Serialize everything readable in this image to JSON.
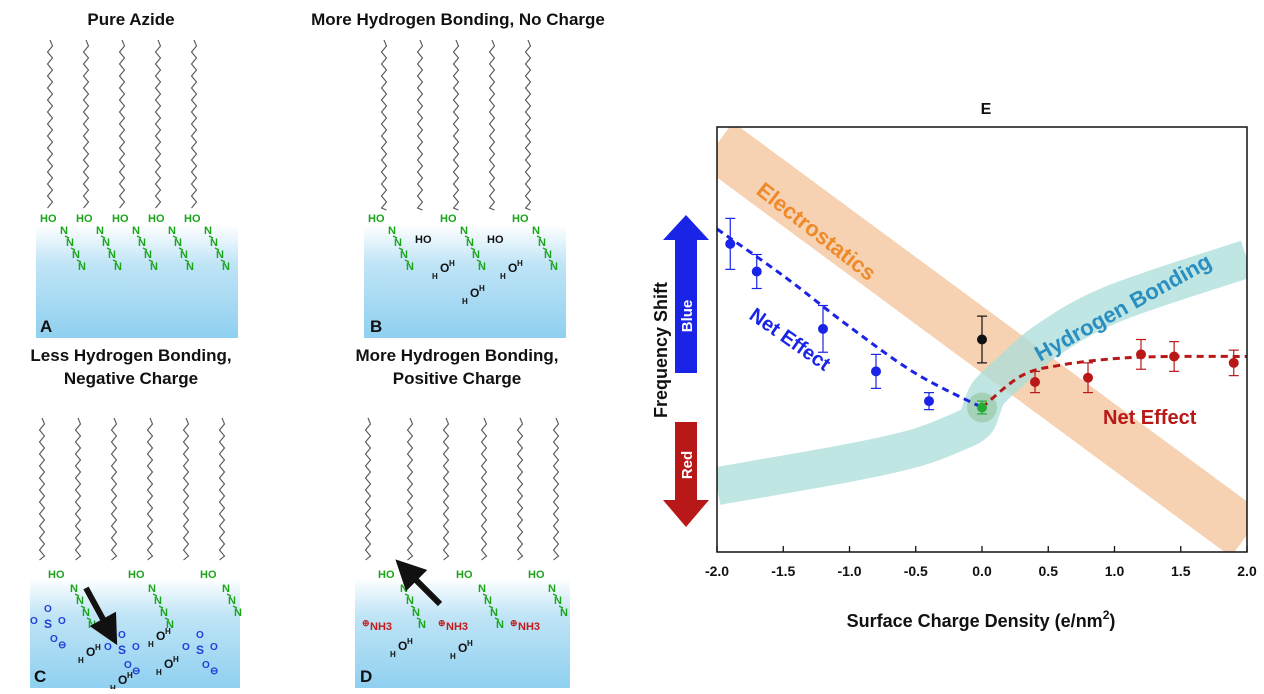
{
  "panels": {
    "A": {
      "letter": "A",
      "title_lines": [
        "Pure Azide"
      ]
    },
    "B": {
      "letter": "B",
      "title_lines": [
        "More Hydrogen Bonding, No Charge"
      ]
    },
    "C": {
      "letter": "C",
      "title_lines": [
        "Less Hydrogen Bonding,",
        "Negative Charge"
      ]
    },
    "D": {
      "letter": "D",
      "title_lines": [
        "More Hydrogen Bonding,",
        "Positive Charge"
      ]
    }
  },
  "chem_labels": {
    "hydroxyl": "HO",
    "nitrogen": "N",
    "oxygen": "O",
    "sulfur": "S",
    "hydrogen": "H",
    "ammonium": "NH3",
    "neg_charge": "⊖",
    "pos_charge": "⊕"
  },
  "colors": {
    "azide": "#1aa51a",
    "sulfonate": "#1f3fd6",
    "ammonium": "#c41a1a",
    "water": "#111111",
    "chain": "#555555",
    "liquid_top": "#ffffff",
    "liquid_bottom": "#8fd0f0",
    "electrostatics_band": "#f5caa6",
    "hbond_band": "#a9ddd9",
    "neg_series": "#1a24e6",
    "pos_series": "#b81818",
    "neutral_point": "#111111",
    "zero_point": "#22aa33"
  },
  "chart_data": {
    "type": "scatter",
    "title": "E",
    "xlabel": "Surface Charge Density (e/nm²)",
    "xlabel_main": "Surface Charge Density (e/nm",
    "xlabel_sup": "2",
    "xlabel_end": ")",
    "ylabel": "Frequency Shift",
    "xlim": [
      -2.0,
      2.0
    ],
    "ylim": [
      0,
      10
    ],
    "x_ticks": [
      "-2.0",
      "-1.5",
      "-1.0",
      "-0.5",
      "0.0",
      "0.5",
      "1.0",
      "1.5",
      "2.0"
    ],
    "blue_arrow_label": "Blue",
    "red_arrow_label": "Red",
    "band_labels": {
      "electrostatics": "Electrostatics",
      "hydrogen_bonding": "Hydrogen Bonding"
    },
    "net_effect_label_neg": "Net Effect",
    "net_effect_label_pos": "Net Effect",
    "series": [
      {
        "color": "#1a24e6",
        "x": [
          -1.9,
          -1.7,
          -1.2,
          -0.8,
          -0.4
        ],
        "y": [
          7.25,
          6.6,
          5.25,
          4.25,
          3.55
        ],
        "err": [
          0.6,
          0.4,
          0.55,
          0.4,
          0.2
        ]
      },
      {
        "color": "#b81818",
        "x": [
          0.4,
          0.8,
          1.2,
          1.45,
          1.9
        ],
        "y": [
          4.0,
          4.1,
          4.65,
          4.6,
          4.45
        ],
        "err": [
          0.25,
          0.35,
          0.35,
          0.35,
          0.3
        ]
      },
      {
        "color": "#111111",
        "x": [
          0.0
        ],
        "y": [
          5.0
        ],
        "err": [
          0.55
        ]
      },
      {
        "color": "#22aa33",
        "x": [
          0.0
        ],
        "y": [
          3.4
        ],
        "err": [
          0.15
        ]
      }
    ],
    "net_effect_fit_neg": {
      "x": [
        -2.0,
        -1.5,
        -1.0,
        -0.5,
        0.0
      ],
      "y": [
        7.6,
        6.5,
        5.3,
        4.2,
        3.4
      ]
    },
    "net_effect_fit_pos": {
      "x": [
        0.0,
        0.3,
        0.6,
        1.0,
        1.4,
        2.0
      ],
      "y": [
        3.4,
        4.15,
        4.4,
        4.55,
        4.6,
        4.6
      ]
    },
    "electrostatics_band": {
      "x": [
        -2.0,
        2.0
      ],
      "y": [
        9.6,
        0.4
      ]
    },
    "hbond_band": {
      "x": [
        -2.0,
        -1.0,
        -0.5,
        -0.2,
        -0.05,
        0.0,
        0.05,
        0.2,
        0.5,
        1.0,
        2.0
      ],
      "y": [
        1.55,
        2.1,
        2.45,
        2.8,
        3.05,
        3.4,
        3.75,
        4.2,
        5.0,
        5.85,
        6.9
      ]
    }
  }
}
